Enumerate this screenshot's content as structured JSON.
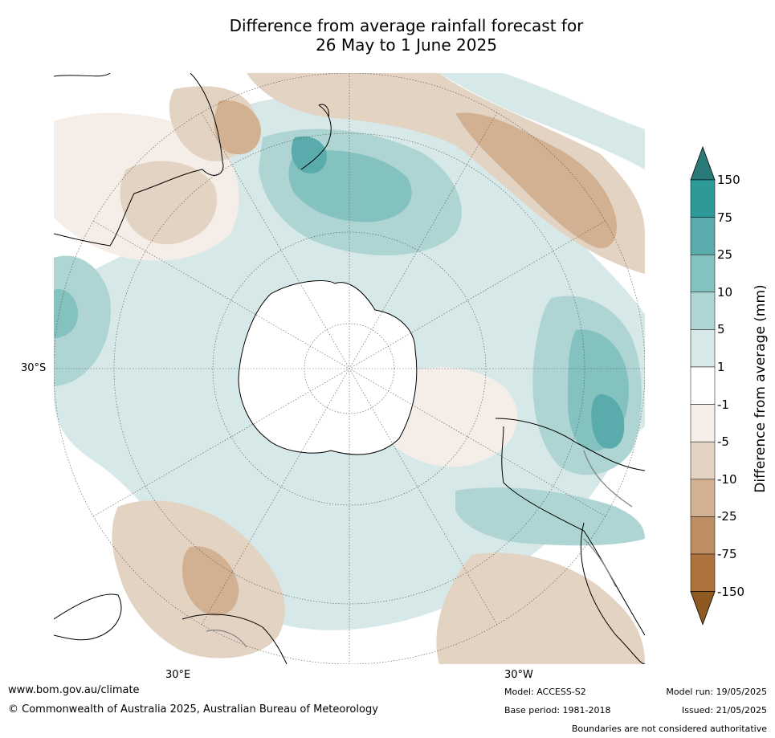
{
  "title": {
    "line1": "Difference from average rainfall forecast for",
    "line2": "26 May to 1 June 2025"
  },
  "map": {
    "projection": "south-polar-stereographic",
    "labels": {
      "lat": "30°S",
      "lon_east": "30°E",
      "lon_west": "30°W"
    },
    "colors": {
      "ocean_background": "#ffffff",
      "coastline": "#000000",
      "boundaries": "#808080",
      "graticule": "#555555"
    },
    "boundaries_note": "Boundaries are not considered authoritative"
  },
  "colorbar": {
    "title": "Difference from average (mm)",
    "ticks": [
      "150",
      "75",
      "25",
      "10",
      "5",
      "1",
      "-1",
      "-5",
      "-10",
      "-25",
      "-75",
      "-150"
    ],
    "colors": {
      "over": "#2a7a7a",
      "75-150": "#2e9999",
      "25-75": "#5aabab",
      "10-25": "#84c2c0",
      "5-10": "#aed5d3",
      "1-5": "#d6e9e8",
      "-1-1": "#ffffff",
      "-5--1": "#f4ede8",
      "-10--5": "#e3d3c3",
      "-25--10": "#d1b192",
      "-75--25": "#bd8e63",
      "-150--75": "#ad733f",
      "under": "#8f5a22"
    }
  },
  "footer": {
    "website": "www.bom.gov.au/climate",
    "copyright": "© Commonwealth of Australia 2025, Australian Bureau of Meteorology",
    "model": "Model: ACCESS-S2",
    "base_period": "Base period: 1981-2018",
    "model_run": "Model run: 19/05/2025",
    "issued": "Issued: 21/05/2025",
    "boundaries": "Boundaries are not considered authoritative"
  }
}
